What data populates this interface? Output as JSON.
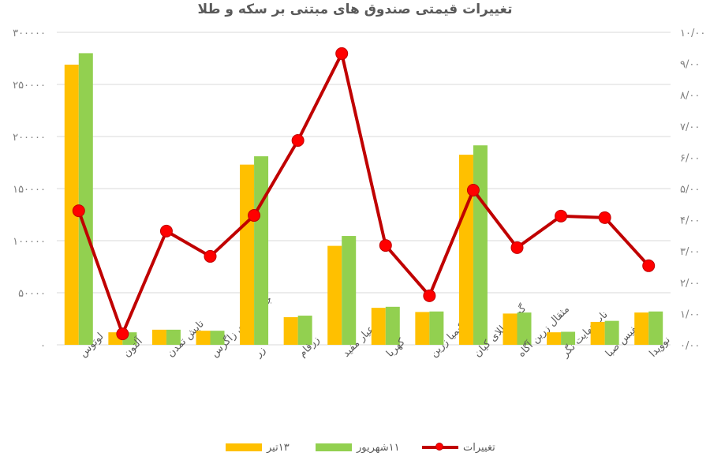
{
  "chart_data": {
    "type": "bar+line",
    "title": "تغییرات قیمتی صندوق های مبتنی بر سکه و طلا",
    "categories": [
      "لوتوس",
      "آلتون",
      "تابش تمدن",
      "جواهر دنای زاگرس",
      "زر",
      "زرفام",
      "عیار مفید",
      "کهربا",
      "کیمیا زرین",
      "گوهر طلای کیان",
      "مثقال زرین آگاه",
      "ناب نهایت نگر",
      "نفیس صبا",
      "نوویدا"
    ],
    "series": [
      {
        "name": "۱۳تیر",
        "type": "bar",
        "axis": "left",
        "color": "#ffc000",
        "values": [
          269000,
          12000,
          14500,
          13500,
          173000,
          26500,
          95000,
          35500,
          31500,
          182500,
          30000,
          12000,
          22000,
          31000
        ]
      },
      {
        "name": "۱۱شهریور",
        "type": "bar",
        "axis": "left",
        "color": "#92d050",
        "values": [
          280000,
          12000,
          14500,
          13500,
          181000,
          28000,
          104500,
          36500,
          32000,
          191500,
          31000,
          12500,
          23000,
          32000
        ]
      },
      {
        "name": "تغییرات",
        "type": "line",
        "axis": "right",
        "color": "#c00000",
        "marker_color": "#ff0000",
        "values": [
          4.29,
          0.35,
          3.64,
          2.83,
          4.14,
          6.54,
          9.32,
          3.18,
          1.57,
          4.95,
          3.11,
          4.12,
          4.07,
          2.53
        ]
      }
    ],
    "left_axis": {
      "ylim": [
        0,
        300000
      ],
      "ticks": [
        0,
        50000,
        100000,
        150000,
        200000,
        250000,
        300000
      ],
      "tick_labels": [
        "۰",
        "۵۰۰۰۰",
        "۱۰۰۰۰۰",
        "۱۵۰۰۰۰",
        "۲۰۰۰۰۰",
        "۲۵۰۰۰۰",
        "۳۰۰۰۰۰"
      ]
    },
    "right_axis": {
      "ylim": [
        0,
        10
      ],
      "ticks": [
        0,
        1,
        2,
        3,
        4,
        5,
        6,
        7,
        8,
        9,
        10
      ],
      "tick_labels": [
        "۰/۰۰",
        "۱/۰۰",
        "۲/۰۰",
        "۳/۰۰",
        "۴/۰۰",
        "۵/۰۰",
        "۶/۰۰",
        "۷/۰۰",
        "۸/۰۰",
        "۹/۰۰",
        "۱۰/۰۰"
      ]
    },
    "grid": true,
    "legend_position": "bottom",
    "xlabel": "",
    "ylabel": ""
  },
  "legend": {
    "items": [
      {
        "label": "۱۳تیر",
        "color": "#ffc000"
      },
      {
        "label": "۱۱شهریور",
        "color": "#92d050"
      },
      {
        "label": "تغییرات",
        "color": "#c00000"
      }
    ]
  }
}
